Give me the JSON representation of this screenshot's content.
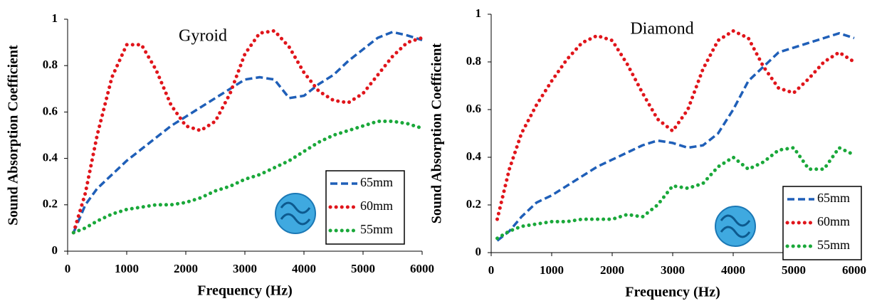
{
  "chart_data": [
    {
      "type": "line",
      "title": "Gyroid",
      "x_label": "Frequency (Hz)",
      "y_label": "Sound Absorption Coefficient",
      "x": [
        100,
        300,
        500,
        750,
        1000,
        1250,
        1500,
        1750,
        2000,
        2250,
        2500,
        2750,
        3000,
        3250,
        3500,
        3750,
        4000,
        4250,
        4500,
        4750,
        5000,
        5250,
        5500,
        5750,
        6000
      ],
      "series": [
        {
          "name": "65mm",
          "color": "#1f5fb8",
          "values": [
            0.08,
            0.2,
            0.27,
            0.33,
            0.39,
            0.44,
            0.49,
            0.54,
            0.58,
            0.62,
            0.66,
            0.7,
            0.74,
            0.75,
            0.74,
            0.66,
            0.67,
            0.72,
            0.76,
            0.82,
            0.87,
            0.92,
            0.945,
            0.93,
            0.91
          ]
        },
        {
          "name": "60mm",
          "color": "#e0151b",
          "values": [
            0.08,
            0.25,
            0.5,
            0.75,
            0.89,
            0.89,
            0.78,
            0.63,
            0.54,
            0.52,
            0.56,
            0.68,
            0.85,
            0.94,
            0.95,
            0.88,
            0.77,
            0.69,
            0.65,
            0.64,
            0.68,
            0.76,
            0.84,
            0.9,
            0.92
          ]
        },
        {
          "name": "55mm",
          "color": "#1aa83a",
          "values": [
            0.08,
            0.1,
            0.13,
            0.16,
            0.18,
            0.19,
            0.2,
            0.2,
            0.21,
            0.23,
            0.26,
            0.28,
            0.31,
            0.33,
            0.36,
            0.39,
            0.43,
            0.47,
            0.5,
            0.52,
            0.54,
            0.56,
            0.56,
            0.55,
            0.53
          ]
        }
      ],
      "xlim": [
        0,
        6000
      ],
      "xticks": [
        0,
        1000,
        2000,
        3000,
        4000,
        5000,
        6000
      ],
      "ylim": [
        0,
        1
      ],
      "yticks": [
        0,
        0.2,
        0.4,
        0.6,
        0.8,
        1
      ]
    },
    {
      "type": "line",
      "title": "Diamond",
      "x_label": "Frequency (Hz)",
      "y_label": "Sound Absorption Coefficient",
      "x": [
        100,
        300,
        500,
        750,
        1000,
        1250,
        1500,
        1750,
        2000,
        2250,
        2500,
        2750,
        3000,
        3250,
        3500,
        3750,
        4000,
        4250,
        4500,
        4750,
        5000,
        5250,
        5500,
        5750,
        6000
      ],
      "series": [
        {
          "name": "65mm",
          "color": "#1f5fb8",
          "values": [
            0.05,
            0.09,
            0.15,
            0.21,
            0.24,
            0.28,
            0.32,
            0.36,
            0.39,
            0.42,
            0.45,
            0.47,
            0.46,
            0.44,
            0.45,
            0.5,
            0.6,
            0.72,
            0.78,
            0.84,
            0.86,
            0.88,
            0.9,
            0.92,
            0.9
          ]
        },
        {
          "name": "60mm",
          "color": "#e0151b",
          "values": [
            0.14,
            0.35,
            0.5,
            0.62,
            0.72,
            0.81,
            0.88,
            0.91,
            0.89,
            0.79,
            0.67,
            0.56,
            0.51,
            0.6,
            0.77,
            0.89,
            0.93,
            0.9,
            0.78,
            0.69,
            0.67,
            0.73,
            0.8,
            0.84,
            0.8
          ]
        },
        {
          "name": "55mm",
          "color": "#1aa83a",
          "values": [
            0.06,
            0.09,
            0.11,
            0.12,
            0.13,
            0.13,
            0.14,
            0.14,
            0.14,
            0.16,
            0.15,
            0.2,
            0.28,
            0.27,
            0.29,
            0.36,
            0.4,
            0.35,
            0.38,
            0.43,
            0.44,
            0.35,
            0.35,
            0.44,
            0.41
          ]
        }
      ],
      "xlim": [
        0,
        6000
      ],
      "xticks": [
        0,
        1000,
        2000,
        3000,
        4000,
        5000,
        6000
      ],
      "ylim": [
        0,
        1
      ],
      "yticks": [
        0,
        0.2,
        0.4,
        0.6,
        0.8,
        1
      ]
    }
  ]
}
